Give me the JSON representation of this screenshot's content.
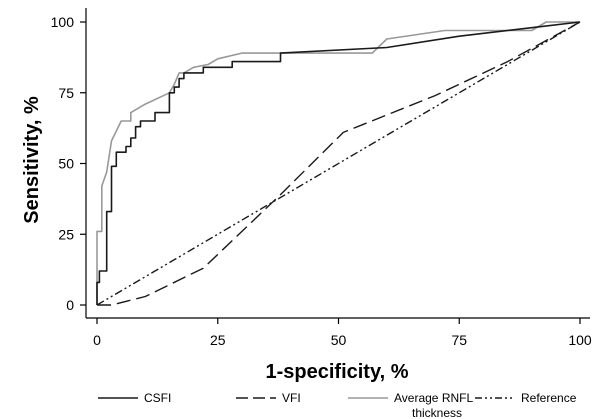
{
  "chart_data": {
    "type": "line",
    "title": "",
    "xlabel": "1-specificity, %",
    "ylabel": "Sensitivity, %",
    "xlim": [
      0,
      100
    ],
    "ylim": [
      0,
      100
    ],
    "xticks": [
      0,
      25,
      50,
      75,
      100
    ],
    "yticks": [
      0,
      25,
      50,
      75,
      100
    ],
    "grid": false,
    "legend_position": "bottom",
    "series": [
      {
        "name": "CSFI",
        "color": "#1a1a1a",
        "dash": "solid",
        "points": [
          [
            0,
            0
          ],
          [
            0,
            8
          ],
          [
            0.5,
            8
          ],
          [
            0.5,
            12
          ],
          [
            2,
            12
          ],
          [
            2,
            33
          ],
          [
            3,
            33
          ],
          [
            3,
            49
          ],
          [
            4,
            49
          ],
          [
            4,
            54
          ],
          [
            6,
            54
          ],
          [
            6,
            56
          ],
          [
            7,
            56
          ],
          [
            7,
            59
          ],
          [
            8,
            59
          ],
          [
            8,
            63
          ],
          [
            9,
            63
          ],
          [
            9,
            65
          ],
          [
            12,
            65
          ],
          [
            12,
            68
          ],
          [
            15,
            68
          ],
          [
            15,
            75
          ],
          [
            16,
            75
          ],
          [
            16,
            77
          ],
          [
            17,
            77
          ],
          [
            17,
            80
          ],
          [
            18,
            80
          ],
          [
            18,
            82
          ],
          [
            22,
            82
          ],
          [
            22,
            84
          ],
          [
            28,
            84
          ],
          [
            28,
            86
          ],
          [
            38,
            86
          ],
          [
            38,
            89
          ],
          [
            60,
            91
          ],
          [
            75,
            95
          ],
          [
            90,
            98
          ],
          [
            100,
            100
          ]
        ]
      },
      {
        "name": "VFI",
        "color": "#1a1a1a",
        "dash": "long-dash",
        "points": [
          [
            0,
            0
          ],
          [
            3,
            0
          ],
          [
            10,
            3
          ],
          [
            22,
            13
          ],
          [
            38,
            39
          ],
          [
            51,
            61
          ],
          [
            70,
            74
          ],
          [
            85,
            86
          ],
          [
            100,
            100
          ]
        ]
      },
      {
        "name": "Average RNFL thickness",
        "color": "#999999",
        "dash": "solid",
        "points": [
          [
            0,
            0
          ],
          [
            0,
            26
          ],
          [
            1,
            26
          ],
          [
            1,
            42
          ],
          [
            2,
            47
          ],
          [
            3,
            58
          ],
          [
            5,
            65
          ],
          [
            7,
            65
          ],
          [
            7,
            68
          ],
          [
            10,
            71
          ],
          [
            15,
            75
          ],
          [
            16,
            78
          ],
          [
            17,
            82
          ],
          [
            18,
            82
          ],
          [
            20,
            84
          ],
          [
            23,
            85
          ],
          [
            25,
            87
          ],
          [
            30,
            89
          ],
          [
            45,
            89
          ],
          [
            57,
            89
          ],
          [
            60,
            94
          ],
          [
            72,
            97
          ],
          [
            90,
            97
          ],
          [
            93,
            100
          ],
          [
            100,
            100
          ]
        ]
      },
      {
        "name": "Reference",
        "color": "#1a1a1a",
        "dash": "dash-dot-dot",
        "points": [
          [
            0,
            0
          ],
          [
            100,
            100
          ]
        ]
      }
    ],
    "legend": [
      {
        "series": "CSFI",
        "line1": "CSFI",
        "line2": ""
      },
      {
        "series": "VFI",
        "line1": "VFI",
        "line2": ""
      },
      {
        "series": "Average RNFL thickness",
        "line1": "Average RNFL",
        "line2": "thickness"
      },
      {
        "series": "Reference",
        "line1": "Reference",
        "line2": ""
      }
    ]
  }
}
